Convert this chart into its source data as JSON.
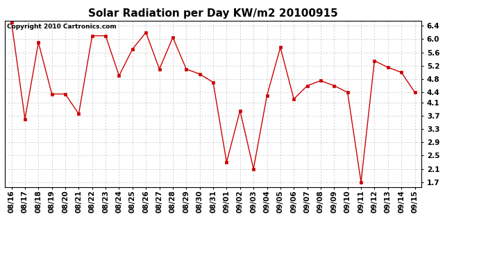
{
  "title": "Solar Radiation per Day KW/m2 20100915",
  "copyright": "Copyright 2010 Cartronics.com",
  "dates": [
    "08/16",
    "08/17",
    "08/18",
    "08/19",
    "08/20",
    "08/21",
    "08/22",
    "08/23",
    "08/24",
    "08/25",
    "08/26",
    "08/27",
    "08/28",
    "08/29",
    "08/30",
    "08/31",
    "09/01",
    "09/02",
    "09/03",
    "09/04",
    "09/05",
    "09/06",
    "09/07",
    "09/08",
    "09/09",
    "09/10",
    "09/11",
    "09/12",
    "09/13",
    "09/14",
    "09/15"
  ],
  "values": [
    6.5,
    3.6,
    5.9,
    4.35,
    4.35,
    3.75,
    6.1,
    6.1,
    4.9,
    5.7,
    6.2,
    5.1,
    6.05,
    5.1,
    4.95,
    4.7,
    2.3,
    3.85,
    2.1,
    4.3,
    5.75,
    4.2,
    4.6,
    4.75,
    4.6,
    4.4,
    1.7,
    5.35,
    5.15,
    5.0,
    4.4
  ],
  "line_color": "#cc0000",
  "marker_color": "#cc0000",
  "bg_color": "#ffffff",
  "plot_bg_color": "#ffffff",
  "grid_color": "#bbbbbb",
  "ylim": [
    1.55,
    6.55
  ],
  "yticks": [
    1.7,
    2.1,
    2.5,
    2.9,
    3.3,
    3.7,
    4.1,
    4.4,
    4.8,
    5.2,
    5.6,
    6.0,
    6.4
  ],
  "ytick_labels": [
    "1.7",
    "2.1",
    "2.5",
    "2.9",
    "3.3",
    "3.7",
    "4.1",
    "4.4",
    "4.8",
    "5.2",
    "5.6",
    "6.0",
    "6.4"
  ],
  "title_fontsize": 11,
  "copyright_fontsize": 6.5,
  "tick_fontsize": 7.5,
  "figwidth": 6.9,
  "figheight": 3.75,
  "dpi": 100
}
